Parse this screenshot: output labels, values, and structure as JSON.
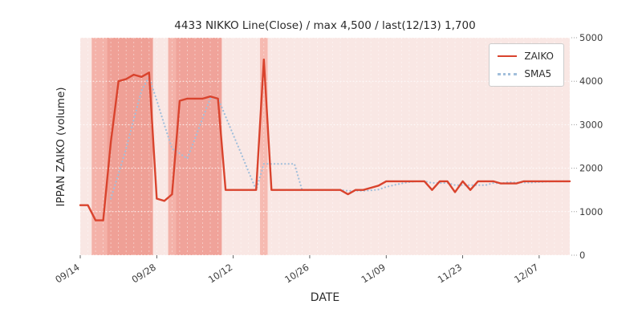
{
  "chart_data": {
    "type": "line",
    "title": "4433 NIKKO Line(Close) / max 4,500 / last(12/13) 1,700",
    "xlabel": "DATE",
    "ylabel": "IPPAN ZAIKO (volume)",
    "ylim": [
      0,
      5000
    ],
    "yticks": [
      0,
      1000,
      2000,
      3000,
      4000,
      5000
    ],
    "xticks": {
      "indices": [
        0,
        10,
        20,
        30,
        40,
        50,
        60
      ],
      "labels": [
        "09/14",
        "09/28",
        "10/12",
        "10/26",
        "11/09",
        "11/23",
        "12/07"
      ]
    },
    "grid": "white-dotted",
    "plot_bg": "#f9e7e4",
    "figure_bg": "#ffffff",
    "x_dates": [
      "09/14",
      "09/15",
      "09/16",
      "09/17",
      "09/20",
      "09/21",
      "09/22",
      "09/23",
      "09/24",
      "09/27",
      "09/28",
      "09/29",
      "09/30",
      "10/01",
      "10/04",
      "10/05",
      "10/06",
      "10/07",
      "10/08",
      "10/11",
      "10/12",
      "10/13",
      "10/14",
      "10/15",
      "10/18",
      "10/19",
      "10/20",
      "10/21",
      "10/22",
      "10/25",
      "10/26",
      "10/27",
      "10/28",
      "10/29",
      "11/01",
      "11/02",
      "11/03",
      "11/04",
      "11/05",
      "11/08",
      "11/09",
      "11/10",
      "11/11",
      "11/12",
      "11/15",
      "11/16",
      "11/17",
      "11/18",
      "11/19",
      "11/22",
      "11/23",
      "11/24",
      "11/25",
      "11/26",
      "11/29",
      "11/30",
      "12/01",
      "12/02",
      "12/03",
      "12/06",
      "12/07",
      "12/08",
      "12/09",
      "12/10",
      "12/13"
    ],
    "series": [
      {
        "name": "ZAIKO",
        "color": "#d9432d",
        "style": "solid",
        "values": [
          1150,
          1150,
          800,
          800,
          2600,
          4000,
          4050,
          4150,
          4100,
          4200,
          1300,
          1250,
          1400,
          3550,
          3600,
          3600,
          3600,
          3650,
          3600,
          1500,
          1500,
          1500,
          1500,
          1500,
          4500,
          1500,
          1500,
          1500,
          1500,
          1500,
          1500,
          1500,
          1500,
          1500,
          1500,
          1400,
          1500,
          1500,
          1550,
          1600,
          1700,
          1700,
          1700,
          1700,
          1700,
          1700,
          1500,
          1700,
          1700,
          1450,
          1700,
          1500,
          1700,
          1700,
          1700,
          1650,
          1650,
          1650,
          1700,
          1700,
          1700,
          1700,
          1700,
          1700,
          1700
        ]
      },
      {
        "name": "SMA5",
        "color": "#a2bfdb",
        "style": "dotted",
        "values": [
          null,
          null,
          null,
          null,
          1300,
          1870,
          2450,
          3120,
          3780,
          4100,
          3560,
          3000,
          2450,
          2340,
          2220,
          2680,
          3150,
          3600,
          3610,
          3190,
          2770,
          2350,
          1920,
          1500,
          2100,
          2100,
          2100,
          2100,
          2100,
          1500,
          1500,
          1500,
          1500,
          1500,
          1500,
          1480,
          1480,
          1480,
          1490,
          1510,
          1570,
          1610,
          1650,
          1680,
          1700,
          1700,
          1660,
          1660,
          1660,
          1610,
          1610,
          1610,
          1610,
          1610,
          1660,
          1650,
          1680,
          1670,
          1670,
          1670,
          1680,
          1690,
          1700,
          1700,
          1700
        ]
      }
    ],
    "background_bands": [
      {
        "start": 2,
        "end": 3,
        "color": "#f4b2a9"
      },
      {
        "start": 4,
        "end": 9,
        "color": "#efa096"
      },
      {
        "start": 12,
        "end": 12,
        "color": "#f4b2a9"
      },
      {
        "start": 13,
        "end": 18,
        "color": "#f0a39a"
      },
      {
        "start": 24,
        "end": 24,
        "color": "#f6bab1"
      }
    ],
    "legend": {
      "position": "upper-right",
      "entries": [
        "ZAIKO",
        "SMA5"
      ]
    }
  }
}
